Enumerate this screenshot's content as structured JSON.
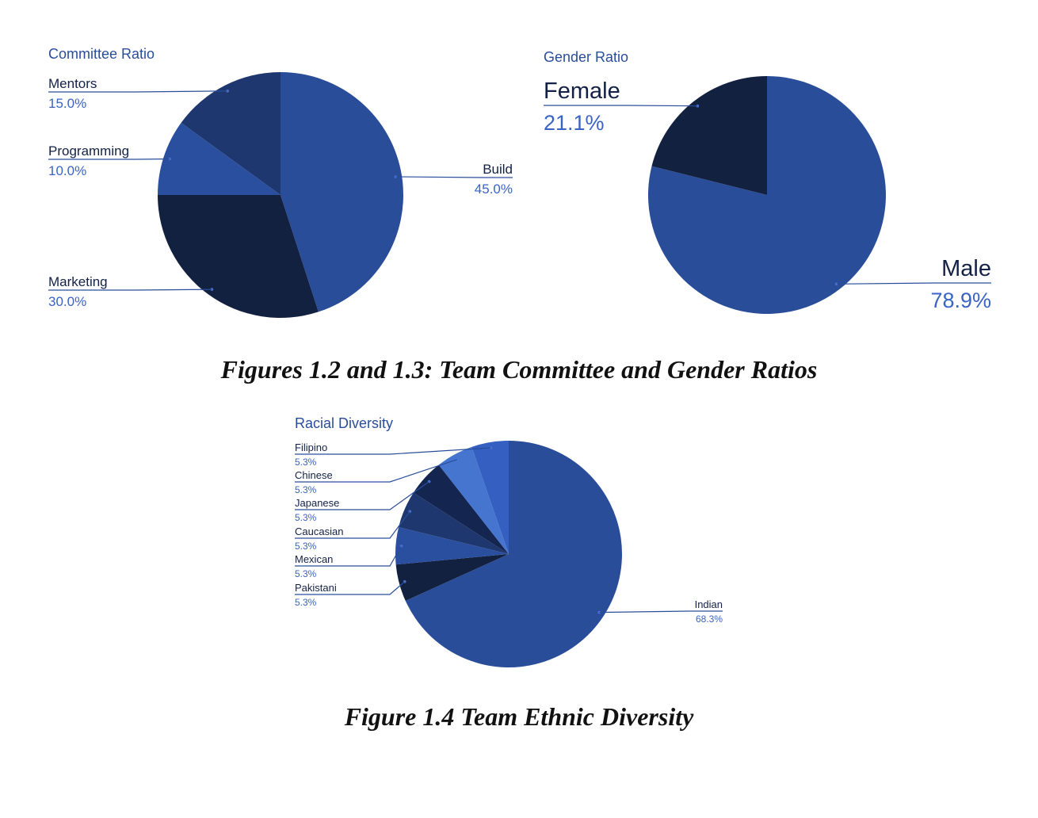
{
  "chart_data": [
    {
      "type": "pie",
      "title": "Committee Ratio",
      "slices": [
        {
          "label": "Build",
          "value": 45.0,
          "display": "45.0%",
          "color": "#294d98"
        },
        {
          "label": "Marketing",
          "value": 30.0,
          "display": "30.0%",
          "color": "#132141"
        },
        {
          "label": "Programming",
          "value": 10.0,
          "display": "10.0%",
          "color": "#2a4f9e"
        },
        {
          "label": "Mentors",
          "value": 15.0,
          "display": "15.0%",
          "color": "#1e376f"
        }
      ]
    },
    {
      "type": "pie",
      "title": "Gender Ratio",
      "slices": [
        {
          "label": "Male",
          "value": 78.9,
          "display": "78.9%",
          "color": "#294d98"
        },
        {
          "label": "Female",
          "value": 21.1,
          "display": "21.1%",
          "color": "#132141"
        }
      ]
    },
    {
      "type": "pie",
      "title": "Racial Diversity",
      "slices": [
        {
          "label": "Indian",
          "value": 68.3,
          "display": "68.3%",
          "color": "#294d98"
        },
        {
          "label": "Pakistani",
          "value": 5.3,
          "display": "5.3%",
          "color": "#132141"
        },
        {
          "label": "Mexican",
          "value": 5.3,
          "display": "5.3%",
          "color": "#2a4f9e"
        },
        {
          "label": "Caucasian",
          "value": 5.3,
          "display": "5.3%",
          "color": "#1e376f"
        },
        {
          "label": "Japanese",
          "value": 5.3,
          "display": "5.3%",
          "color": "#142650"
        },
        {
          "label": "Chinese",
          "value": 5.3,
          "display": "5.3%",
          "color": "#4675d0"
        },
        {
          "label": "Filipino",
          "value": 5.3,
          "display": "5.3%",
          "color": "#3560c2"
        }
      ]
    }
  ],
  "captions": {
    "top": "Figures 1.2 and 1.3: Team Committee and Gender Ratios",
    "bottom": "Figure 1.4 Team Ethnic Diversity"
  }
}
